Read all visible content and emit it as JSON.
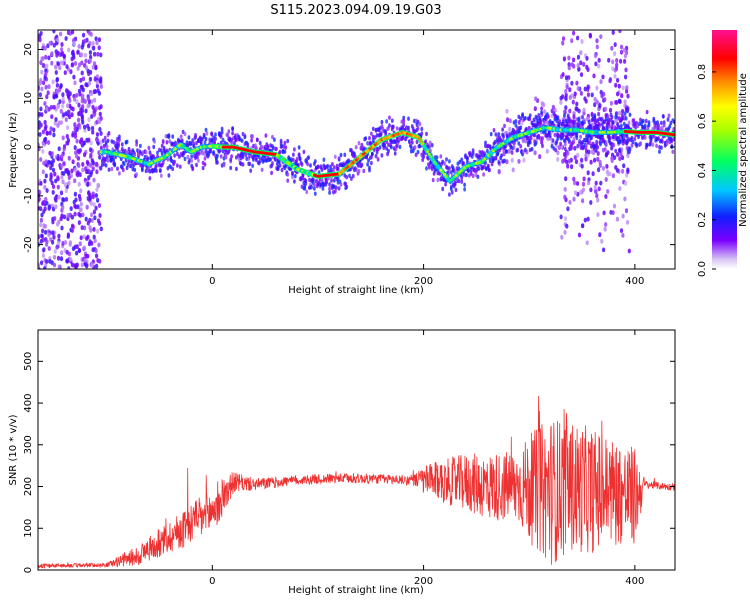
{
  "figure": {
    "title": "S115.2023.094.09.19.G03"
  },
  "chart_data": [
    {
      "type": "heatmap",
      "name": "spectrogram",
      "xlabel": "Height of straight line (km)",
      "ylabel": "Frequency (Hz)",
      "xlim": [
        -165,
        438
      ],
      "ylim": [
        -25,
        24
      ],
      "x_ticks": [
        0,
        200,
        400
      ],
      "y_ticks": [
        -20,
        -10,
        0,
        10,
        20
      ],
      "colorbar": {
        "label": "Normalized spectral amplitude",
        "range": [
          0,
          0.97
        ],
        "ticks": [
          0.0,
          0.2,
          0.4,
          0.6,
          0.8
        ]
      },
      "ridge": {
        "x": [
          -100,
          -80,
          -60,
          -45,
          -30,
          -20,
          -10,
          0,
          10,
          20,
          40,
          60,
          80,
          100,
          120,
          140,
          160,
          180,
          195,
          210,
          225,
          240,
          255,
          270,
          285,
          300,
          315,
          330,
          345,
          360,
          375,
          390,
          405,
          420,
          438
        ],
        "y": [
          -1,
          -2,
          -3.5,
          -2,
          0.5,
          -1,
          0,
          0.2,
          0,
          0,
          -1,
          -1.5,
          -4.5,
          -6,
          -5.5,
          -2,
          1.5,
          3,
          2,
          -3,
          -7,
          -4,
          -3,
          0,
          2,
          3,
          4,
          3.5,
          3.5,
          3,
          3,
          3.2,
          3,
          3,
          2.5
        ]
      }
    },
    {
      "type": "line",
      "name": "snr",
      "xlabel": "Height of straight line (km)",
      "ylabel": "SNR (10 * v/v)",
      "xlim": [
        -165,
        438
      ],
      "ylim": [
        0,
        575
      ],
      "x_ticks": [
        0,
        200,
        400
      ],
      "y_ticks": [
        0,
        100,
        200,
        300,
        400,
        500
      ],
      "color": "#ee3030",
      "envelope": {
        "x": [
          -165,
          -100,
          -70,
          -40,
          -20,
          0,
          10,
          20,
          40,
          80,
          120,
          160,
          190,
          200,
          240,
          260,
          290,
          300,
          320,
          340,
          360,
          380,
          400,
          410,
          438
        ],
        "mean": [
          10,
          12,
          35,
          80,
          110,
          140,
          180,
          210,
          205,
          215,
          220,
          218,
          215,
          215,
          210,
          200,
          200,
          195,
          190,
          200,
          190,
          190,
          175,
          205,
          198
        ],
        "spread": [
          5,
          5,
          25,
          40,
          50,
          55,
          55,
          25,
          15,
          12,
          12,
          12,
          12,
          35,
          70,
          80,
          90,
          130,
          180,
          160,
          150,
          130,
          120,
          10,
          8
        ]
      }
    }
  ]
}
